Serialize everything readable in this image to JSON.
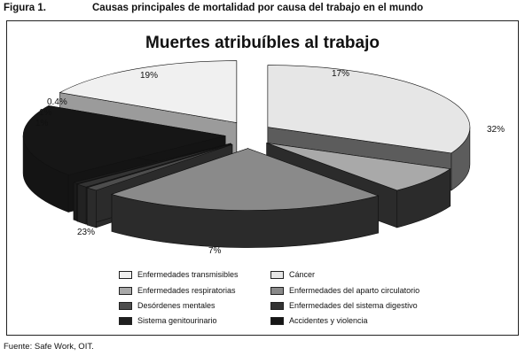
{
  "figure": {
    "label": "Figura 1.",
    "title": "Causas principales de mortalidad por causa del trabajo en el mundo",
    "source": "Fuente: Safe Work, OIT."
  },
  "chart_data": {
    "type": "pie",
    "title": "Muertes atribuíbles al trabajo",
    "labels": [
      "Enfermedades transmisibles",
      "Cáncer",
      "Enfermedades respiratorias",
      "Enfermedades del aparto circulatorio",
      "Desórdenes mentales",
      "Enfermedades del sistema digestivo",
      "Sistema genitourinario",
      "Accidentes y violencia"
    ],
    "slices": [
      {
        "label": "Cáncer",
        "value": 32,
        "value_label": "32%",
        "color": "#5c5c5c",
        "top_color": "#e6e6e6"
      },
      {
        "label": "Enfermedades respiratorias",
        "value": 7,
        "value_label": "7%",
        "color": "#2b2b2b",
        "top_color": "#a9a9a9"
      },
      {
        "label": "Enfermedades del aparto circulatorio",
        "value": 23,
        "value_label": "23%",
        "color": "#2b2b2b",
        "top_color": "#8a8a8a"
      },
      {
        "label": "Desórdenes mentales",
        "value": 1,
        "value_label": "1%",
        "color": "#2b2b2b",
        "top_color": "#4d4d4d"
      },
      {
        "label": "Enfermedades del sistema digestivo",
        "value": 1,
        "value_label": "1%",
        "color": "#222222",
        "top_color": "#333333"
      },
      {
        "label": "Sistema genitourinario",
        "value": 0.4,
        "value_label": "0.4%",
        "color": "#1a1a1a",
        "top_color": "#1f1f1f"
      },
      {
        "label": "Accidentes y violencia",
        "value": 19,
        "value_label": "19%",
        "color": "#141414",
        "top_color": "#161616"
      },
      {
        "label": "Enfermedades transmisibles",
        "value": 17,
        "value_label": "17%",
        "color": "#9b9b9b",
        "top_color": "#f0f0f0"
      }
    ],
    "legend": [
      {
        "label": "Enfermedades transmisibles",
        "color": "#f0f0f0"
      },
      {
        "label": "Cáncer",
        "color": "#e6e6e6"
      },
      {
        "label": "Enfermedades respiratorias",
        "color": "#a9a9a9"
      },
      {
        "label": "Enfermedades del aparto circulatorio",
        "color": "#8a8a8a"
      },
      {
        "label": "Desórdenes mentales",
        "color": "#4d4d4d"
      },
      {
        "label": "Enfermedades del sistema digestivo",
        "color": "#333333"
      },
      {
        "label": "Sistema genitourinario",
        "color": "#1f1f1f"
      },
      {
        "label": "Accidentes y violencia",
        "color": "#161616"
      }
    ],
    "legend_placement": "bottom",
    "exploded": true,
    "three_d": true
  }
}
